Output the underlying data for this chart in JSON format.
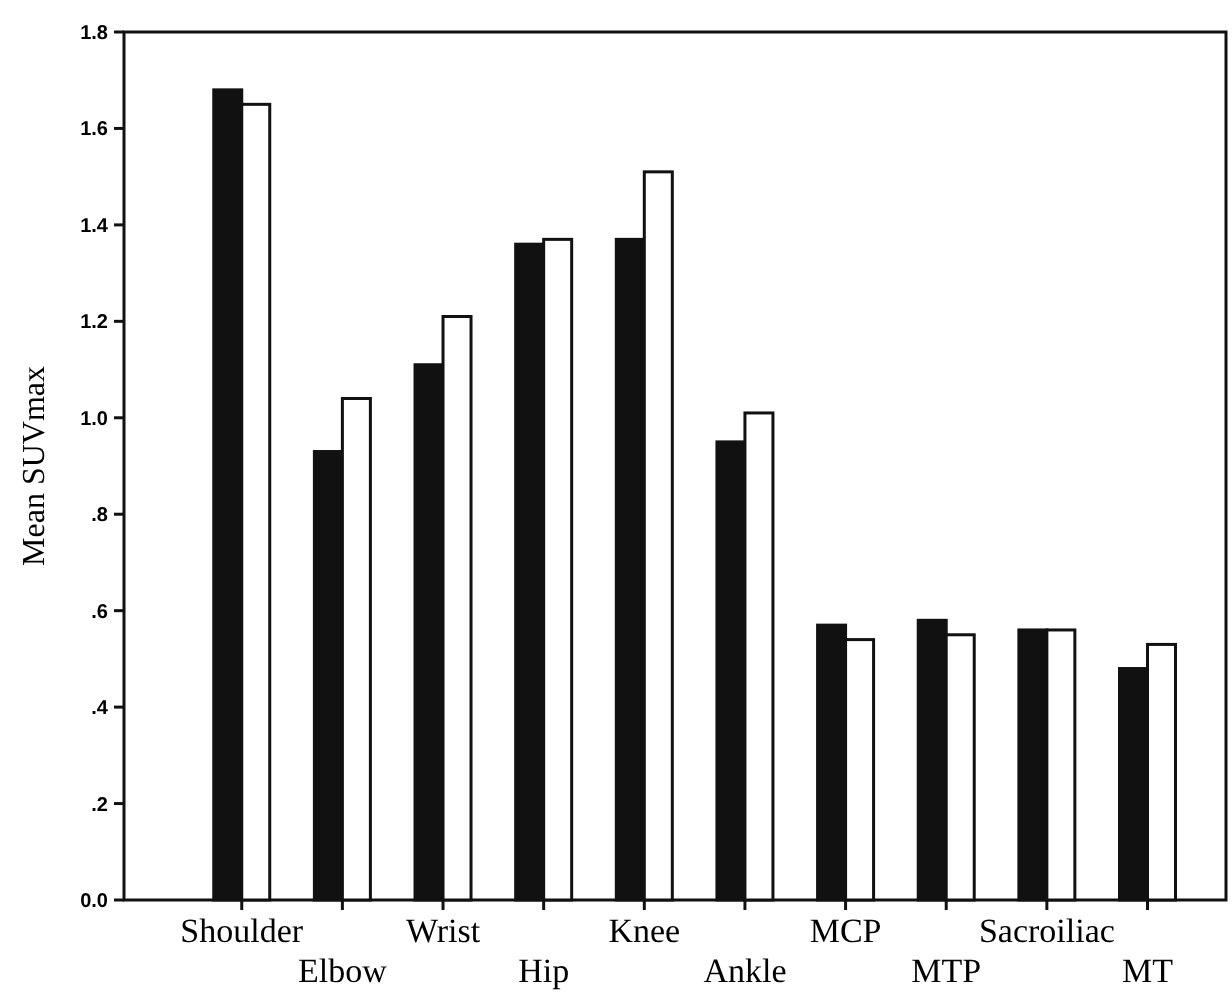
{
  "chart_data": {
    "type": "bar",
    "ylabel": "Mean SUVmax",
    "categories": [
      "Shoulder",
      "Elbow",
      "Wrist",
      "Hip",
      "Knee",
      "Ankle",
      "MCP",
      "MTP",
      "Sacroiliac",
      "MT"
    ],
    "series": [
      {
        "color": "#111111",
        "values": [
          1.68,
          0.93,
          1.11,
          1.36,
          1.37,
          0.95,
          0.57,
          0.58,
          0.56,
          0.48
        ]
      },
      {
        "color": "#ffffff",
        "values": [
          1.65,
          1.04,
          1.21,
          1.37,
          1.51,
          1.01,
          0.54,
          0.55,
          0.56,
          0.53
        ]
      }
    ],
    "ylim": [
      0,
      1.8
    ],
    "yticks": [
      {
        "value": 0,
        "label": "0.0"
      },
      {
        "value": 0.2,
        "label": ".2"
      },
      {
        "value": 0.4,
        "label": ".4"
      },
      {
        "value": 0.6,
        "label": ".6"
      },
      {
        "value": 0.8,
        "label": ".8"
      },
      {
        "value": 1,
        "label": "1.0"
      },
      1.2,
      1.4,
      1.6,
      1.8
    ],
    "grid": false
  }
}
